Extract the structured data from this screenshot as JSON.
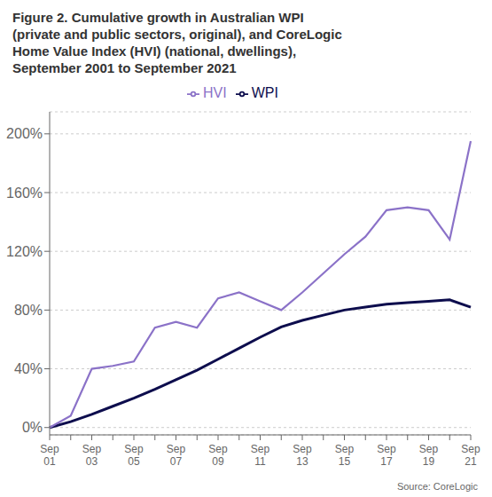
{
  "chart_data": {
    "type": "line",
    "title": "Figure 2. Cumulative growth in Australian WPI\n(private and public sectors, original), and CoreLogic\nHome Value Index (HVI) (national, dwellings),\nSeptember 2001 to September 2021",
    "categories": [
      "Sep\n01",
      null,
      "Sep\n03",
      null,
      "Sep\n05",
      null,
      "Sep\n07",
      null,
      "Sep\n09",
      null,
      "Sep\n11",
      null,
      "Sep\n13",
      null,
      "Sep\n15",
      null,
      "Sep\n17",
      null,
      "Sep\n19",
      null,
      "Sep\n21"
    ],
    "series": [
      {
        "name": "WPI",
        "color": "#0d0d4d",
        "values": [
          0.0,
          4.0,
          9.0,
          14.5,
          20.0,
          26.0,
          32.5,
          39.0,
          46.5,
          54.0,
          61.5,
          68.5,
          73.0,
          76.5,
          80.0,
          82.0,
          84.0,
          85.0,
          86.0,
          87.0,
          82.0
        ]
      },
      {
        "name": "HVI",
        "color": "#8b72c8",
        "values": [
          0.0,
          8.0,
          40.0,
          42.0,
          45.0,
          68.0,
          72.0,
          68.0,
          88.0,
          92.0,
          86.0,
          80.0,
          92.0,
          105.0,
          118.0,
          130.0,
          148.0,
          150.0,
          148.0,
          128.0,
          195.0
        ]
      }
    ],
    "ylim": [
      -5,
      215
    ],
    "yticks": [
      {
        "value": 0,
        "label": "0%"
      },
      {
        "value": 40,
        "label": "40%"
      },
      {
        "value": 80,
        "label": "80%"
      },
      {
        "value": 120,
        "label": "120%"
      },
      {
        "value": 160,
        "label": "160%"
      },
      {
        "value": 200,
        "label": "200%"
      }
    ],
    "grid": true,
    "legend": "top",
    "annotations": [
      "Source: CoreLogic"
    ]
  }
}
